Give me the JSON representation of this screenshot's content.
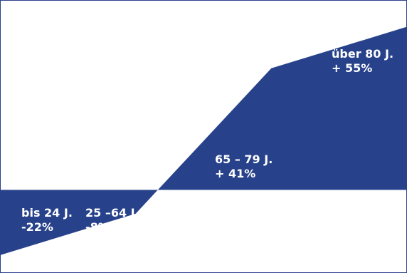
{
  "chart_data": {
    "type": "area",
    "title": "",
    "xlabel": "",
    "ylabel": "",
    "categories": [
      "bis 24 J.",
      "25 –64 J.",
      "65 –  79 J.",
      "über 80 J."
    ],
    "values": [
      -22,
      -8,
      41,
      55
    ],
    "value_labels": [
      "-22%",
      "-8%",
      "+ 41%",
      "+ 55%"
    ],
    "unit": "%",
    "baseline": 0,
    "ylim": [
      -28,
      64
    ],
    "grid": false,
    "legend": "none",
    "colors": {
      "fill": "#27428a",
      "background": "#ffffff"
    }
  }
}
